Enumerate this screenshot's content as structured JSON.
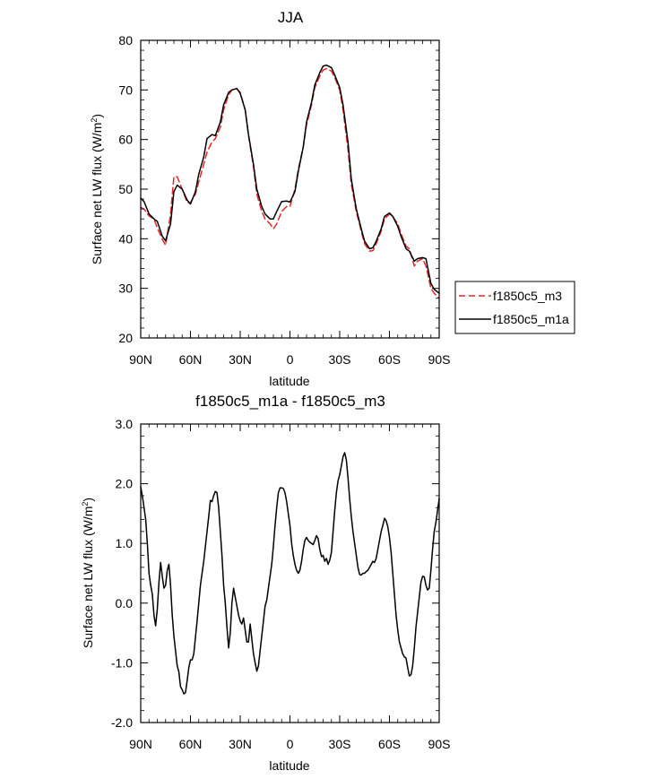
{
  "chart_data": [
    {
      "type": "line",
      "title": "JJA",
      "xlabel": "latitude",
      "ylabel": "Surface net LW flux (W/m",
      "ylabel_sup": "2",
      "ylabel_close": ")",
      "x_unit": "degrees latitude (90 = 90N, -90 = 90S)",
      "xlim": [
        90,
        -90
      ],
      "ylim": [
        20,
        80
      ],
      "x_ticks": [
        90,
        60,
        30,
        0,
        -30,
        -60,
        -90
      ],
      "x_tick_labels": [
        "90N",
        "60N",
        "30N",
        "0",
        "30S",
        "60S",
        "90S"
      ],
      "y_ticks": [
        20,
        30,
        40,
        50,
        60,
        70,
        80
      ],
      "y_tick_labels": [
        "20",
        "30",
        "40",
        "50",
        "60",
        "70",
        "80"
      ],
      "legend": {
        "placement": "outside-right",
        "entries": [
          "f1850c5_m3",
          "f1850c5_m1a"
        ]
      },
      "series": [
        {
          "name": "f1850c5_m3",
          "color": "#e8262a",
          "dash": "dashed",
          "x": [
            90,
            88,
            85,
            82,
            80,
            77,
            75,
            72,
            70,
            68,
            65,
            62,
            60,
            57,
            55,
            52,
            50,
            47,
            45,
            42,
            40,
            37,
            35,
            32,
            30,
            27,
            25,
            22,
            20,
            17,
            15,
            12,
            10,
            8,
            5,
            2,
            0,
            -3,
            -5,
            -8,
            -10,
            -13,
            -15,
            -18,
            -20,
            -22,
            -25,
            -27,
            -30,
            -32,
            -35,
            -37,
            -40,
            -43,
            -45,
            -48,
            -50,
            -52,
            -55,
            -57,
            -60,
            -62,
            -65,
            -67,
            -70,
            -72,
            -75,
            -77,
            -80,
            -82,
            -85,
            -87,
            -90
          ],
          "y": [
            46.3,
            46.0,
            44.6,
            44.0,
            42.2,
            39.9,
            38.7,
            45.0,
            52.5,
            52.5,
            50.0,
            47.3,
            47.3,
            49.0,
            51.5,
            55.0,
            57.5,
            59.5,
            60.2,
            62.5,
            66.0,
            69.0,
            70.0,
            70.2,
            69.5,
            66.0,
            60.8,
            54.5,
            49.0,
            45.5,
            44.0,
            43.0,
            42.0,
            43.0,
            45.5,
            46.5,
            46.5,
            50.0,
            54.0,
            58.5,
            63.0,
            67.0,
            70.5,
            72.8,
            74.0,
            74.3,
            73.8,
            72.5,
            70.0,
            66.0,
            58.0,
            51.0,
            45.5,
            41.5,
            39.0,
            37.5,
            37.6,
            39.0,
            41.5,
            44.0,
            45.0,
            44.5,
            43.0,
            41.0,
            38.5,
            38.0,
            34.5,
            35.5,
            36.0,
            34.5,
            30.0,
            29.0,
            28.0
          ]
        },
        {
          "name": "f1850c5_m1a",
          "color": "#000000",
          "dash": "solid",
          "x": [
            90,
            88,
            85,
            82,
            80,
            77,
            75,
            72,
            70,
            68,
            65,
            62,
            60,
            57,
            55,
            52,
            50,
            47,
            45,
            42,
            40,
            37,
            35,
            32,
            30,
            27,
            25,
            22,
            20,
            17,
            15,
            12,
            10,
            8,
            5,
            2,
            0,
            -3,
            -5,
            -8,
            -10,
            -13,
            -15,
            -18,
            -20,
            -22,
            -25,
            -27,
            -30,
            -32,
            -35,
            -37,
            -40,
            -43,
            -45,
            -48,
            -50,
            -52,
            -55,
            -57,
            -60,
            -62,
            -65,
            -67,
            -70,
            -72,
            -75,
            -77,
            -80,
            -82,
            -85,
            -87,
            -90
          ],
          "y": [
            48.2,
            47.5,
            45.0,
            44.0,
            43.5,
            40.5,
            39.6,
            43.0,
            49.5,
            50.8,
            50.0,
            47.8,
            47.0,
            49.5,
            53.0,
            56.5,
            60.2,
            61.0,
            60.8,
            63.5,
            67.0,
            69.5,
            70.0,
            70.3,
            69.3,
            66.0,
            61.0,
            55.0,
            50.0,
            46.5,
            45.0,
            44.0,
            44.0,
            45.5,
            47.5,
            47.6,
            47.4,
            49.5,
            53.5,
            58.5,
            63.5,
            67.5,
            71.0,
            73.5,
            74.8,
            75.0,
            74.5,
            73.0,
            70.5,
            67.0,
            59.5,
            52.0,
            46.0,
            42.0,
            39.5,
            38.0,
            38.2,
            39.5,
            42.0,
            44.5,
            45.2,
            44.5,
            42.5,
            40.5,
            38.0,
            37.5,
            35.5,
            36.0,
            36.2,
            36.0,
            31.0,
            29.8,
            29.0
          ]
        }
      ]
    },
    {
      "type": "line",
      "title": "f1850c5_m1a - f1850c5_m3",
      "xlabel": "latitude",
      "ylabel": "Surface net LW flux (W/m",
      "ylabel_sup": "2",
      "ylabel_close": ")",
      "x_unit": "degrees latitude (90 = 90N, -90 = 90S)",
      "xlim": [
        90,
        -90
      ],
      "ylim": [
        -2.0,
        3.0
      ],
      "x_ticks": [
        90,
        60,
        30,
        0,
        -30,
        -60,
        -90
      ],
      "x_tick_labels": [
        "90N",
        "60N",
        "30N",
        "0",
        "30S",
        "60S",
        "90S"
      ],
      "y_ticks": [
        -2.0,
        -1.0,
        0.0,
        1.0,
        2.0,
        3.0
      ],
      "y_tick_labels": [
        "-2.0",
        "-1.0",
        "0.0",
        "1.0",
        "2.0",
        "3.0"
      ],
      "series": [
        {
          "color": "#000000",
          "dash": "solid",
          "x": [
            90,
            88.5,
            87,
            86,
            85,
            84,
            83,
            82,
            81,
            80,
            79,
            78,
            77,
            76,
            75,
            74,
            73,
            72,
            71,
            70,
            68,
            67,
            66,
            65,
            64,
            63,
            62,
            61,
            60,
            59,
            58,
            56,
            54,
            53,
            52,
            51,
            50,
            49,
            48,
            47,
            46,
            45,
            44,
            43,
            42,
            41,
            40,
            39,
            38,
            37,
            36,
            35,
            34,
            33,
            32,
            31,
            30,
            29,
            28,
            27,
            26,
            25,
            24,
            23,
            22,
            21,
            20,
            19,
            18,
            17,
            16,
            15,
            14,
            13,
            12,
            11,
            10,
            9,
            8,
            7,
            6,
            5,
            4,
            3,
            2,
            1,
            0,
            -1,
            -2,
            -3,
            -4,
            -5,
            -6,
            -7,
            -8,
            -9,
            -10,
            -11,
            -12,
            -13,
            -14,
            -15,
            -16,
            -17,
            -18,
            -19,
            -20,
            -21,
            -22,
            -23,
            -24,
            -25,
            -26,
            -27,
            -28,
            -29,
            -30,
            -31,
            -32,
            -33,
            -34,
            -35,
            -36,
            -37,
            -38,
            -39,
            -40,
            -41,
            -42,
            -43,
            -44,
            -45,
            -46,
            -47,
            -48,
            -49,
            -50,
            -51,
            -52,
            -53,
            -54,
            -55,
            -56,
            -57,
            -58,
            -59,
            -60,
            -61,
            -62,
            -63,
            -64,
            -65,
            -66,
            -67,
            -68,
            -69,
            -70,
            -71,
            -72,
            -73,
            -74,
            -75,
            -76,
            -77,
            -78,
            -79,
            -80,
            -81,
            -82,
            -83,
            -84,
            -85,
            -86,
            -87,
            -88,
            -89,
            -90
          ],
          "y": [
            1.95,
            1.7,
            1.4,
            1.0,
            0.5,
            0.3,
            0.15,
            -0.2,
            -0.38,
            -0.1,
            0.35,
            0.68,
            0.45,
            0.25,
            0.3,
            0.55,
            0.65,
            0.3,
            -0.2,
            -0.55,
            -1.05,
            -1.15,
            -1.4,
            -1.45,
            -1.52,
            -1.5,
            -1.3,
            -1.08,
            -0.95,
            -0.95,
            -0.85,
            -0.3,
            0.3,
            0.5,
            0.7,
            0.95,
            1.2,
            1.45,
            1.72,
            1.7,
            1.8,
            1.87,
            1.85,
            1.6,
            1.2,
            0.8,
            0.3,
            0.0,
            -0.4,
            -0.75,
            -0.5,
            0.0,
            0.25,
            0.1,
            -0.05,
            -0.2,
            -0.3,
            -0.35,
            -0.25,
            -0.45,
            -0.65,
            -0.65,
            -0.35,
            -0.6,
            -0.85,
            -1.0,
            -1.14,
            -1.05,
            -0.8,
            -0.55,
            -0.3,
            -0.05,
            0.05,
            0.25,
            0.45,
            0.65,
            0.95,
            1.3,
            1.6,
            1.85,
            1.93,
            1.93,
            1.92,
            1.85,
            1.7,
            1.5,
            1.3,
            1.0,
            0.8,
            0.65,
            0.55,
            0.5,
            0.55,
            0.7,
            0.9,
            1.05,
            1.1,
            1.05,
            1.02,
            1.0,
            0.98,
            1.05,
            1.13,
            1.08,
            0.9,
            0.78,
            0.8,
            0.7,
            0.75,
            0.65,
            0.72,
            0.85,
            1.2,
            1.55,
            1.85,
            2.05,
            2.15,
            2.3,
            2.45,
            2.52,
            2.4,
            2.1,
            1.75,
            1.45,
            1.2,
            1.0,
            0.8,
            0.6,
            0.48,
            0.47,
            0.5,
            0.5,
            0.53,
            0.55,
            0.6,
            0.65,
            0.7,
            0.68,
            0.75,
            0.9,
            1.05,
            1.2,
            1.3,
            1.42,
            1.38,
            1.28,
            1.1,
            0.85,
            0.5,
            0.15,
            -0.2,
            -0.45,
            -0.65,
            -0.75,
            -0.85,
            -0.9,
            -0.92,
            -1.08,
            -1.22,
            -1.2,
            -1.05,
            -0.75,
            -0.4,
            -0.15,
            0.1,
            0.35,
            0.45,
            0.44,
            0.3,
            0.22,
            0.25,
            0.55,
            0.9,
            1.2,
            1.35,
            1.55,
            1.75
          ]
        }
      ]
    }
  ]
}
